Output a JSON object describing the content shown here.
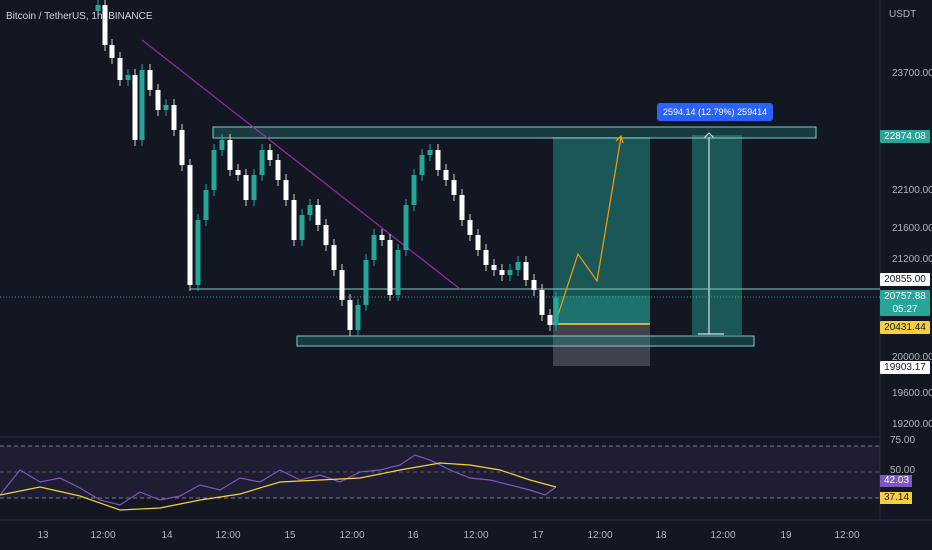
{
  "header": {
    "title": "Bitcoin / TetherUS, 1h, BINANCE"
  },
  "price_axis": {
    "currency": "USDT",
    "ticks": [
      "23700.00",
      "22100.00",
      "21600.00",
      "21200.00",
      "19600.00",
      "19200.00"
    ],
    "tick_values": [
      23700,
      22100,
      21600,
      21200,
      19600,
      19200
    ]
  },
  "price_badges": {
    "target": "22874.08",
    "level_upper": "20855.00",
    "current": "20757.88",
    "countdown": "05:27",
    "entry": "20431.44",
    "stop": "19903.17",
    "partial": "20000.00"
  },
  "measure_label": "2594.14 (12.79%) 259414",
  "time_axis": {
    "labels": [
      "13",
      "12:00",
      "14",
      "12:00",
      "15",
      "12:00",
      "16",
      "12:00",
      "17",
      "12:00",
      "18",
      "12:00",
      "19",
      "12:00"
    ]
  },
  "rsi": {
    "levels": [
      "75.00",
      "50.00"
    ],
    "value": "42.03",
    "ma_value": "37.14"
  },
  "colors": {
    "background": "#131722",
    "up": "#26a69a",
    "down": "#ffffff",
    "target_zone": "#26a69a",
    "stop_zone": "#787b86",
    "trendline": "#9c27b0",
    "path": "#f59f00",
    "rsi_line": "#7e57c2",
    "rsi_ma": "#f5d03c"
  }
}
